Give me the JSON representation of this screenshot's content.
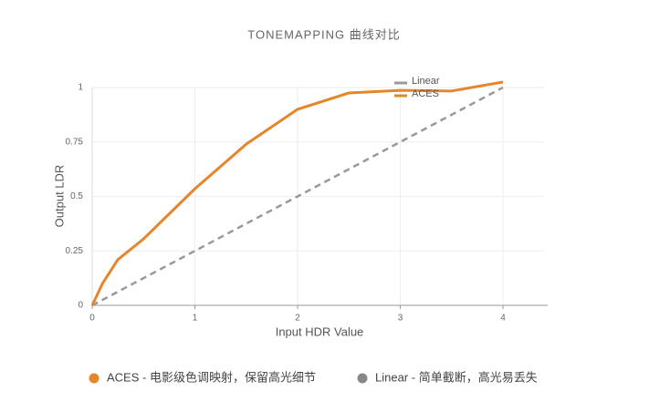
{
  "chart_data": {
    "type": "line",
    "title": "TONEMAPPING 曲线对比",
    "xlabel": "Input HDR Value",
    "ylabel": "Output LDR",
    "xlim": [
      0,
      4.4
    ],
    "xticks": [
      0,
      1,
      2,
      3,
      4
    ],
    "ylim": [
      0,
      1
    ],
    "yticks": [
      0,
      0.25,
      0.5,
      0.75,
      1
    ],
    "grid": true,
    "legend": "upper right",
    "series": [
      {
        "name": "Linear",
        "color": "#999999",
        "dashed": true,
        "x": [
          0,
          1,
          2,
          3,
          4
        ],
        "values": [
          0,
          0.25,
          0.5,
          0.75,
          1
        ]
      },
      {
        "name": "ACES",
        "color": "#e6862a",
        "dashed": false,
        "x": [
          0,
          0.1,
          0.25,
          0.5,
          1,
          1.5,
          2,
          2.5,
          3,
          3.5,
          4
        ],
        "values": [
          0,
          0.1,
          0.21,
          0.305,
          0.535,
          0.74,
          0.9,
          0.975,
          0.987,
          0.984,
          1.025
        ]
      }
    ],
    "footer_legend": [
      {
        "label": "ACES - 电影级色调映射，保留高光细节",
        "color": "#e6862a"
      },
      {
        "label": "Linear - 简单截断，高光易丢失",
        "color": "#888888"
      }
    ]
  }
}
